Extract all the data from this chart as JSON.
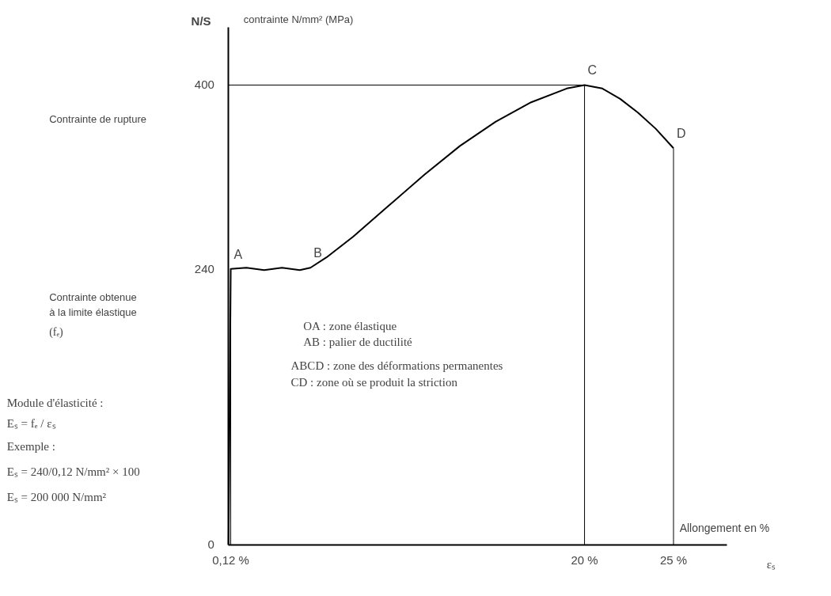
{
  "chart_data": {
    "type": "line",
    "ylabel": "contrainte N/mm² (MPa)",
    "xlabel": "Allongement en %",
    "xlim": [
      0,
      28
    ],
    "ylim": [
      0,
      450
    ],
    "xticks": [
      {
        "value": 0.12,
        "label": "0,12 %"
      },
      {
        "value": 20,
        "label": "20 %"
      },
      {
        "value": 25,
        "label": "25 %"
      }
    ],
    "yticks": [
      0,
      240,
      400
    ],
    "series": [
      {
        "color": "#000000",
        "x": [
          0,
          0.12,
          1,
          2,
          3,
          4,
          4.6,
          5.5,
          7,
          9,
          11,
          13,
          15,
          17,
          19,
          20,
          21,
          22,
          23,
          24,
          25
        ],
        "values": [
          0,
          240,
          241,
          239,
          241,
          239,
          241,
          250,
          268,
          295,
          322,
          347,
          368,
          385,
          397,
          400,
          397,
          388,
          376,
          362,
          345
        ]
      }
    ],
    "ref_lines": [
      {
        "axis": "x",
        "value": 0.12
      },
      {
        "axis": "x",
        "value": 20
      },
      {
        "axis": "x",
        "value": 25
      },
      {
        "axis": "y",
        "value": 400
      }
    ],
    "annotations": [
      {
        "text": "A",
        "x": 0.12,
        "y": 240
      },
      {
        "text": "B",
        "x": 4.6,
        "y": 241
      },
      {
        "text": "C",
        "x": 20,
        "y": 400
      },
      {
        "text": "D",
        "x": 25,
        "y": 345
      },
      "N/S",
      "Contrainte de rupture",
      "Contrainte obtenue",
      "à la limite élastique",
      "(fₑ)",
      "OA : zone élastique",
      "AB : palier de ductilité",
      "ABCD : zone des déformations permanentes",
      "CD : zone où se produit la striction",
      "Module d'élasticité :",
      "Eₛ = fₑ / εₛ",
      "Exemple :",
      "Eₛ = 240/0,12 N/mm² × 100",
      "Eₛ = 200 000 N/mm²",
      "εₛ"
    ]
  }
}
